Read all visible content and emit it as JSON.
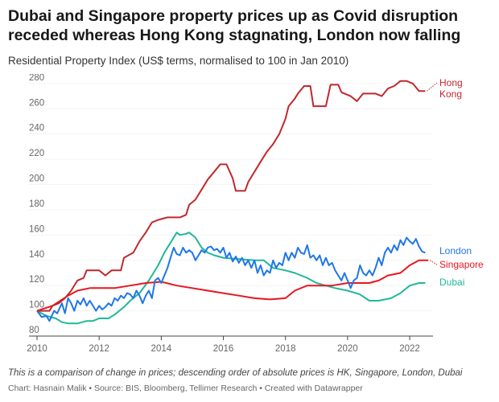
{
  "title": "Dubai and Singapore property prices up as Covid disruption receded whereas Hong Kong stagnating, London now falling",
  "subtitle": "Residential Property Index (US$ terms, normalised to 100 in Jan 2010)",
  "notes": "This is a comparison of change in prices; descending order of absolute prices is HK, Singapore, London, Dubai",
  "credit": {
    "chart_by": "Chart: Hasnain Malik",
    "source": "Source: BIS, Bloomberg, Tellimer Research",
    "created_with": "Created with Datawrapper",
    "separator": " • "
  },
  "chart_data": {
    "type": "line",
    "title": "Dubai and Singapore property prices up as Covid disruption receded whereas Hong Kong stagnating, London now falling",
    "subtitle": "Residential Property Index (US$ terms, normalised to 100 in Jan 2010)",
    "xlabel": "",
    "ylabel": "",
    "xlim": [
      2010,
      2022.75
    ],
    "ylim": [
      80,
      285
    ],
    "x_ticks": [
      "2010",
      "2012",
      "2014",
      "2016",
      "2018",
      "2020",
      "2022"
    ],
    "y_ticks": [
      80,
      100,
      120,
      140,
      160,
      180,
      200,
      220,
      240,
      260,
      280
    ],
    "grid": true,
    "legend": "direct labels at line ends",
    "series": [
      {
        "name": "Hong Kong",
        "color": "#c0282d",
        "points": [
          [
            2010,
            100
          ],
          [
            2010.4,
            100
          ],
          [
            2010.5,
            104
          ],
          [
            2010.7,
            106
          ],
          [
            2010.9,
            110
          ],
          [
            2011.1,
            116
          ],
          [
            2011.3,
            124
          ],
          [
            2011.5,
            126
          ],
          [
            2011.6,
            132
          ],
          [
            2012.0,
            132
          ],
          [
            2012.2,
            128
          ],
          [
            2012.4,
            132
          ],
          [
            2012.7,
            132
          ],
          [
            2012.8,
            142
          ],
          [
            2013.1,
            146
          ],
          [
            2013.3,
            155
          ],
          [
            2013.5,
            162
          ],
          [
            2013.7,
            170
          ],
          [
            2013.9,
            172
          ],
          [
            2014.2,
            174
          ],
          [
            2014.6,
            174
          ],
          [
            2014.8,
            176
          ],
          [
            2014.9,
            184
          ],
          [
            2015.1,
            188
          ],
          [
            2015.3,
            196
          ],
          [
            2015.5,
            204
          ],
          [
            2015.7,
            210
          ],
          [
            2015.9,
            216
          ],
          [
            2016.1,
            216
          ],
          [
            2016.3,
            205
          ],
          [
            2016.4,
            195
          ],
          [
            2016.7,
            195
          ],
          [
            2016.8,
            202
          ],
          [
            2017.0,
            210
          ],
          [
            2017.2,
            218
          ],
          [
            2017.4,
            226
          ],
          [
            2017.6,
            232
          ],
          [
            2017.8,
            240
          ],
          [
            2018.0,
            252
          ],
          [
            2018.1,
            262
          ],
          [
            2018.3,
            268
          ],
          [
            2018.4,
            272
          ],
          [
            2018.6,
            278
          ],
          [
            2018.8,
            278
          ],
          [
            2018.9,
            262
          ],
          [
            2019.3,
            262
          ],
          [
            2019.45,
            279
          ],
          [
            2019.7,
            279
          ],
          [
            2019.8,
            273
          ],
          [
            2020.1,
            270
          ],
          [
            2020.3,
            266
          ],
          [
            2020.5,
            272
          ],
          [
            2020.9,
            272
          ],
          [
            2021.1,
            270
          ],
          [
            2021.3,
            276
          ],
          [
            2021.5,
            278
          ],
          [
            2021.7,
            282
          ],
          [
            2021.9,
            282
          ],
          [
            2022.1,
            280
          ],
          [
            2022.3,
            274
          ],
          [
            2022.5,
            274
          ]
        ]
      },
      {
        "name": "London",
        "color": "#1f77e6",
        "points": [
          [
            2010,
            100
          ],
          [
            2010.15,
            95
          ],
          [
            2010.3,
            96
          ],
          [
            2010.4,
            92
          ],
          [
            2010.55,
            100
          ],
          [
            2010.65,
            98
          ],
          [
            2010.8,
            106
          ],
          [
            2010.9,
            98
          ],
          [
            2011.0,
            110
          ],
          [
            2011.1,
            106
          ],
          [
            2011.2,
            100
          ],
          [
            2011.3,
            108
          ],
          [
            2011.4,
            105
          ],
          [
            2011.5,
            110
          ],
          [
            2011.6,
            104
          ],
          [
            2011.7,
            108
          ],
          [
            2011.8,
            104
          ],
          [
            2011.9,
            100
          ],
          [
            2012.0,
            104
          ],
          [
            2012.1,
            101
          ],
          [
            2012.2,
            103
          ],
          [
            2012.3,
            106
          ],
          [
            2012.4,
            104
          ],
          [
            2012.5,
            110
          ],
          [
            2012.6,
            108
          ],
          [
            2012.7,
            112
          ],
          [
            2012.8,
            110
          ],
          [
            2012.9,
            114
          ],
          [
            2013.0,
            113
          ],
          [
            2013.1,
            110
          ],
          [
            2013.2,
            116
          ],
          [
            2013.3,
            112
          ],
          [
            2013.4,
            106
          ],
          [
            2013.5,
            112
          ],
          [
            2013.6,
            116
          ],
          [
            2013.7,
            110
          ],
          [
            2013.8,
            124
          ],
          [
            2013.9,
            126
          ],
          [
            2014.0,
            122
          ],
          [
            2014.1,
            128
          ],
          [
            2014.2,
            134
          ],
          [
            2014.3,
            142
          ],
          [
            2014.4,
            150
          ],
          [
            2014.5,
            145
          ],
          [
            2014.6,
            144
          ],
          [
            2014.7,
            150
          ],
          [
            2014.8,
            146
          ],
          [
            2014.9,
            148
          ],
          [
            2015.0,
            146
          ],
          [
            2015.1,
            140
          ],
          [
            2015.2,
            144
          ],
          [
            2015.3,
            148
          ],
          [
            2015.4,
            146
          ],
          [
            2015.5,
            150
          ],
          [
            2015.6,
            151
          ],
          [
            2015.7,
            148
          ],
          [
            2015.8,
            149
          ],
          [
            2015.9,
            146
          ],
          [
            2016.0,
            150
          ],
          [
            2016.1,
            142
          ],
          [
            2016.2,
            146
          ],
          [
            2016.3,
            139
          ],
          [
            2016.4,
            143
          ],
          [
            2016.5,
            138
          ],
          [
            2016.6,
            142
          ],
          [
            2016.7,
            136
          ],
          [
            2016.8,
            140
          ],
          [
            2016.9,
            134
          ],
          [
            2017.0,
            140
          ],
          [
            2017.1,
            130
          ],
          [
            2017.2,
            136
          ],
          [
            2017.3,
            128
          ],
          [
            2017.4,
            132
          ],
          [
            2017.5,
            130
          ],
          [
            2017.6,
            140
          ],
          [
            2017.7,
            134
          ],
          [
            2017.8,
            138
          ],
          [
            2017.9,
            136
          ],
          [
            2018.0,
            146
          ],
          [
            2018.1,
            140
          ],
          [
            2018.2,
            146
          ],
          [
            2018.3,
            142
          ],
          [
            2018.4,
            150
          ],
          [
            2018.5,
            146
          ],
          [
            2018.6,
            145
          ],
          [
            2018.7,
            152
          ],
          [
            2018.8,
            142
          ],
          [
            2018.9,
            144
          ],
          [
            2019.0,
            140
          ],
          [
            2019.1,
            144
          ],
          [
            2019.2,
            136
          ],
          [
            2019.3,
            142
          ],
          [
            2019.4,
            136
          ],
          [
            2019.5,
            138
          ],
          [
            2019.6,
            132
          ],
          [
            2019.7,
            128
          ],
          [
            2019.8,
            124
          ],
          [
            2019.9,
            130
          ],
          [
            2020.0,
            124
          ],
          [
            2020.1,
            118
          ],
          [
            2020.2,
            124
          ],
          [
            2020.3,
            126
          ],
          [
            2020.4,
            136
          ],
          [
            2020.5,
            130
          ],
          [
            2020.6,
            128
          ],
          [
            2020.7,
            132
          ],
          [
            2020.8,
            128
          ],
          [
            2020.9,
            134
          ],
          [
            2021.0,
            142
          ],
          [
            2021.1,
            136
          ],
          [
            2021.2,
            146
          ],
          [
            2021.3,
            150
          ],
          [
            2021.4,
            146
          ],
          [
            2021.5,
            152
          ],
          [
            2021.6,
            148
          ],
          [
            2021.7,
            156
          ],
          [
            2021.8,
            152
          ],
          [
            2021.9,
            158
          ],
          [
            2022.0,
            155
          ],
          [
            2022.1,
            153
          ],
          [
            2022.2,
            157
          ],
          [
            2022.3,
            151
          ],
          [
            2022.4,
            147
          ],
          [
            2022.5,
            146
          ]
        ]
      },
      {
        "name": "Singapore",
        "color": "#e8151f",
        "points": [
          [
            2010,
            100
          ],
          [
            2010.5,
            104
          ],
          [
            2011.0,
            112
          ],
          [
            2011.3,
            116
          ],
          [
            2011.7,
            118
          ],
          [
            2012.0,
            118
          ],
          [
            2012.5,
            118
          ],
          [
            2013.0,
            120
          ],
          [
            2013.5,
            122
          ],
          [
            2014.0,
            123
          ],
          [
            2014.5,
            120
          ],
          [
            2015.0,
            118
          ],
          [
            2015.5,
            116
          ],
          [
            2016.0,
            114
          ],
          [
            2016.5,
            112
          ],
          [
            2017.0,
            110
          ],
          [
            2017.5,
            109
          ],
          [
            2018.0,
            110
          ],
          [
            2018.3,
            116
          ],
          [
            2018.7,
            120
          ],
          [
            2019.0,
            120
          ],
          [
            2019.5,
            120
          ],
          [
            2020.0,
            122
          ],
          [
            2020.3,
            122
          ],
          [
            2020.7,
            122
          ],
          [
            2021.0,
            124
          ],
          [
            2021.3,
            128
          ],
          [
            2021.7,
            130
          ],
          [
            2022.0,
            136
          ],
          [
            2022.3,
            140
          ],
          [
            2022.6,
            140
          ]
        ]
      },
      {
        "name": "Dubai",
        "color": "#1fb89a",
        "points": [
          [
            2010,
            100
          ],
          [
            2010.3,
            96
          ],
          [
            2010.6,
            94
          ],
          [
            2010.8,
            91
          ],
          [
            2011.0,
            90
          ],
          [
            2011.3,
            90
          ],
          [
            2011.6,
            92
          ],
          [
            2011.8,
            92
          ],
          [
            2012.0,
            94
          ],
          [
            2012.3,
            94
          ],
          [
            2012.5,
            97
          ],
          [
            2012.8,
            103
          ],
          [
            2013.0,
            108
          ],
          [
            2013.3,
            114
          ],
          [
            2013.6,
            124
          ],
          [
            2013.9,
            136
          ],
          [
            2014.1,
            146
          ],
          [
            2014.3,
            154
          ],
          [
            2014.5,
            162
          ],
          [
            2014.6,
            160
          ],
          [
            2014.8,
            161
          ],
          [
            2014.9,
            162
          ],
          [
            2015.1,
            158
          ],
          [
            2015.3,
            150
          ],
          [
            2015.5,
            146
          ],
          [
            2015.7,
            144
          ],
          [
            2016.0,
            142
          ],
          [
            2016.5,
            141
          ],
          [
            2017.0,
            140
          ],
          [
            2017.3,
            140
          ],
          [
            2017.6,
            134
          ],
          [
            2018.0,
            132
          ],
          [
            2018.3,
            130
          ],
          [
            2018.7,
            126
          ],
          [
            2019.0,
            122
          ],
          [
            2019.3,
            120
          ],
          [
            2019.6,
            118
          ],
          [
            2020.0,
            116
          ],
          [
            2020.4,
            113
          ],
          [
            2020.7,
            108
          ],
          [
            2021.0,
            108
          ],
          [
            2021.4,
            110
          ],
          [
            2021.7,
            114
          ],
          [
            2022.0,
            120
          ],
          [
            2022.3,
            122
          ],
          [
            2022.5,
            122
          ]
        ]
      }
    ]
  }
}
